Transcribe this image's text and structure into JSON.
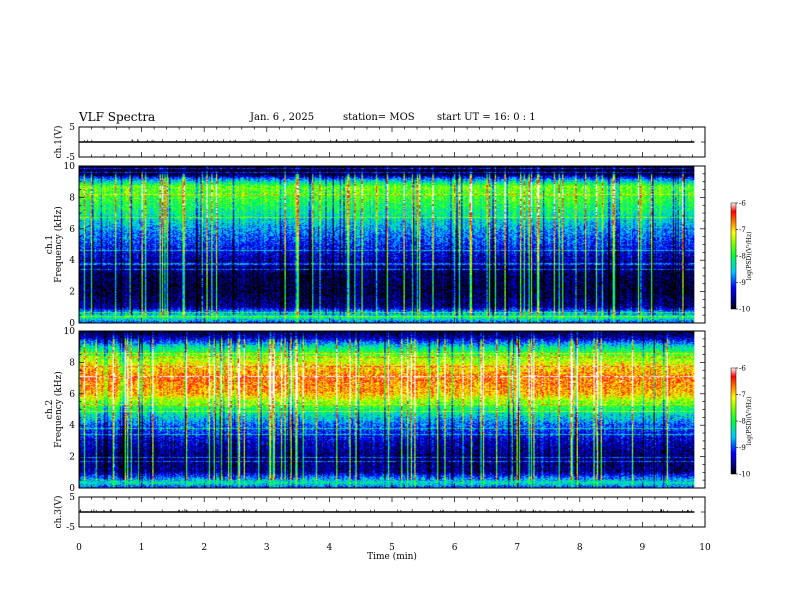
{
  "header": {
    "title": "VLF Spectra",
    "date": "Jan. 6 , 2025",
    "station": "station= MOS",
    "start_ut": "start UT = 16: 0 : 1"
  },
  "chart_data": [
    {
      "type": "line",
      "panel": "ch1-waveform",
      "ylabel": "ch.1(V)",
      "yticks": [
        "5",
        "-5"
      ],
      "ylim": [
        -5,
        5
      ],
      "xlim": [
        0,
        10
      ],
      "baseline_v": 0
    },
    {
      "type": "heatmap",
      "panel": "ch1-spectrogram",
      "ylabel": "ch.1 Frequency (kHz)",
      "xlim": [
        0,
        9.83
      ],
      "ylim": [
        0,
        10
      ],
      "yticks": [
        "0",
        "2",
        "4",
        "6",
        "8",
        "10"
      ],
      "colorbar": {
        "label": "log(PSD)(V²/Hz)",
        "ticks": [
          "-6",
          "-7",
          "-8",
          "-9",
          "-10"
        ],
        "range": [
          -10,
          -6
        ]
      },
      "freq_profile_logpsd": [
        {
          "f": 0.0,
          "v": -9.0
        },
        {
          "f": 0.3,
          "v": -8.2
        },
        {
          "f": 0.7,
          "v": -8.8
        },
        {
          "f": 1.0,
          "v": -9.6
        },
        {
          "f": 2.0,
          "v": -9.9
        },
        {
          "f": 3.0,
          "v": -9.8
        },
        {
          "f": 4.0,
          "v": -9.5
        },
        {
          "f": 5.0,
          "v": -9.1
        },
        {
          "f": 6.0,
          "v": -8.7
        },
        {
          "f": 7.0,
          "v": -8.2
        },
        {
          "f": 8.0,
          "v": -7.8
        },
        {
          "f": 8.7,
          "v": -7.6
        },
        {
          "f": 9.2,
          "v": -8.8
        },
        {
          "f": 9.5,
          "v": -9.9
        },
        {
          "f": 10.0,
          "v": -10.0
        }
      ]
    },
    {
      "type": "heatmap",
      "panel": "ch2-spectrogram",
      "ylabel": "ch.2 Frequency (kHz)",
      "xlim": [
        0,
        9.83
      ],
      "ylim": [
        0,
        10
      ],
      "yticks": [
        "0",
        "2",
        "4",
        "6",
        "8",
        "10"
      ],
      "colorbar": {
        "label": "log(PSD)(V²/Hz)",
        "ticks": [
          "-6",
          "-7",
          "-8",
          "-9",
          "-10"
        ],
        "range": [
          -10,
          -6
        ]
      },
      "freq_profile_logpsd": [
        {
          "f": 0.0,
          "v": -9.0
        },
        {
          "f": 0.3,
          "v": -8.3
        },
        {
          "f": 0.7,
          "v": -9.0
        },
        {
          "f": 1.0,
          "v": -9.6
        },
        {
          "f": 2.0,
          "v": -9.7
        },
        {
          "f": 3.0,
          "v": -9.4
        },
        {
          "f": 4.0,
          "v": -8.9
        },
        {
          "f": 5.0,
          "v": -8.1
        },
        {
          "f": 6.0,
          "v": -6.9
        },
        {
          "f": 7.0,
          "v": -6.6
        },
        {
          "f": 8.0,
          "v": -7.2
        },
        {
          "f": 9.0,
          "v": -8.3
        },
        {
          "f": 9.6,
          "v": -9.5
        },
        {
          "f": 10.0,
          "v": -9.9
        }
      ]
    },
    {
      "type": "line",
      "panel": "ch3-waveform",
      "ylabel": "ch.3(V)",
      "yticks": [
        "5",
        "-5"
      ],
      "ylim": [
        -5,
        5
      ],
      "xlim": [
        0,
        10
      ],
      "baseline_v": 0,
      "xlabel": "Time (min)",
      "xticks": [
        "0",
        "1",
        "2",
        "3",
        "4",
        "5",
        "6",
        "7",
        "8",
        "9",
        "10"
      ]
    }
  ]
}
